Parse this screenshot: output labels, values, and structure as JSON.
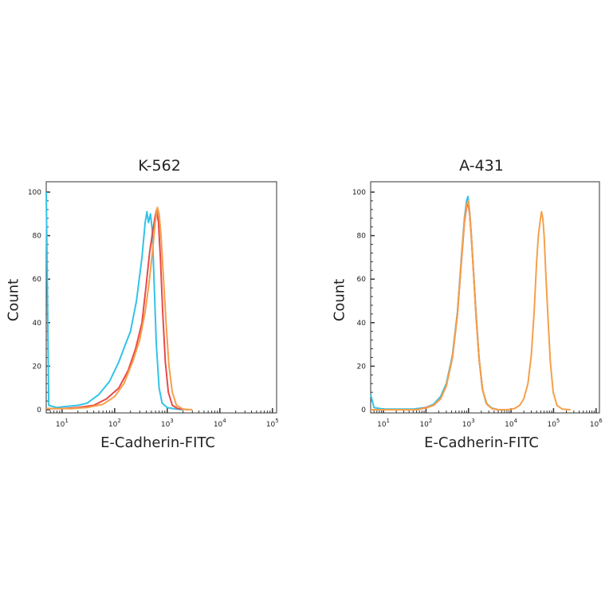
{
  "chart_data": [
    {
      "type": "line",
      "title": "K-562",
      "xlabel": "E-Cadherin-FITC",
      "ylabel": "Count",
      "x_scale": "log",
      "xlim": [
        5,
        120000
      ],
      "ylim": [
        0,
        100
      ],
      "y_ticks": [
        "0",
        "20",
        "40",
        "60",
        "80",
        "100"
      ],
      "x_tick_exponents": [
        1,
        2,
        3,
        4,
        5
      ],
      "series": [
        {
          "color": "#33c3e8",
          "points": [
            [
              5,
              100
            ],
            [
              5.6,
              2
            ],
            [
              8,
              1
            ],
            [
              12,
              1.5
            ],
            [
              20,
              2
            ],
            [
              30,
              3
            ],
            [
              50,
              7
            ],
            [
              80,
              13
            ],
            [
              120,
              22
            ],
            [
              160,
              30
            ],
            [
              200,
              36
            ],
            [
              260,
              50
            ],
            [
              330,
              70
            ],
            [
              380,
              86
            ],
            [
              410,
              91
            ],
            [
              440,
              86
            ],
            [
              480,
              90
            ],
            [
              520,
              82
            ],
            [
              560,
              60
            ],
            [
              620,
              30
            ],
            [
              700,
              10
            ],
            [
              800,
              3
            ],
            [
              1000,
              1
            ],
            [
              1300,
              0.5
            ],
            [
              2000,
              0
            ]
          ]
        },
        {
          "color": "#e84a4a",
          "points": [
            [
              5,
              0.5
            ],
            [
              10,
              0.5
            ],
            [
              20,
              1
            ],
            [
              40,
              2
            ],
            [
              70,
              5
            ],
            [
              120,
              10
            ],
            [
              180,
              18
            ],
            [
              250,
              28
            ],
            [
              330,
              40
            ],
            [
              400,
              58
            ],
            [
              460,
              72
            ],
            [
              530,
              82
            ],
            [
              580,
              88
            ],
            [
              630,
              92
            ],
            [
              680,
              86
            ],
            [
              740,
              70
            ],
            [
              820,
              45
            ],
            [
              920,
              22
            ],
            [
              1050,
              8
            ],
            [
              1250,
              2
            ],
            [
              1600,
              0.5
            ],
            [
              2500,
              0
            ]
          ]
        },
        {
          "color": "#f5a04a",
          "points": [
            [
              5,
              0.5
            ],
            [
              15,
              0.5
            ],
            [
              30,
              1
            ],
            [
              60,
              2.5
            ],
            [
              100,
              6
            ],
            [
              150,
              12
            ],
            [
              220,
              22
            ],
            [
              300,
              32
            ],
            [
              380,
              45
            ],
            [
              450,
              58
            ],
            [
              520,
              72
            ],
            [
              590,
              86
            ],
            [
              650,
              93
            ],
            [
              700,
              90
            ],
            [
              760,
              80
            ],
            [
              840,
              62
            ],
            [
              950,
              40
            ],
            [
              1080,
              20
            ],
            [
              1250,
              8
            ],
            [
              1500,
              2
            ],
            [
              2000,
              0.3
            ],
            [
              3000,
              0
            ]
          ]
        }
      ]
    },
    {
      "type": "line",
      "title": "A-431",
      "xlabel": "E-Cadherin-FITC",
      "ylabel": "Count",
      "x_scale": "log",
      "xlim": [
        5,
        1200000
      ],
      "ylim": [
        0,
        100
      ],
      "y_ticks": [
        "0",
        "20",
        "40",
        "60",
        "80",
        "100"
      ],
      "x_tick_exponents": [
        1,
        2,
        3,
        4,
        5,
        6
      ],
      "series": [
        {
          "color": "#33c3e8",
          "points": [
            [
              5,
              7
            ],
            [
              6,
              1
            ],
            [
              10,
              0.3
            ],
            [
              50,
              0.3
            ],
            [
              100,
              1
            ],
            [
              150,
              2.5
            ],
            [
              220,
              6
            ],
            [
              300,
              12
            ],
            [
              420,
              25
            ],
            [
              550,
              45
            ],
            [
              680,
              70
            ],
            [
              800,
              88
            ],
            [
              900,
              96
            ],
            [
              970,
              98
            ],
            [
              1050,
              92
            ],
            [
              1150,
              82
            ],
            [
              1300,
              65
            ],
            [
              1500,
              45
            ],
            [
              1750,
              25
            ],
            [
              2100,
              10
            ],
            [
              2600,
              3
            ],
            [
              3500,
              0.8
            ],
            [
              5000,
              0
            ]
          ]
        },
        {
          "color": "#e84a4a",
          "points": [
            [
              5,
              0
            ],
            [
              60,
              0
            ],
            [
              100,
              1
            ],
            [
              150,
              2
            ],
            [
              220,
              5
            ],
            [
              300,
              11
            ],
            [
              420,
              24
            ],
            [
              550,
              44
            ],
            [
              680,
              68
            ],
            [
              800,
              86
            ],
            [
              900,
              93
            ],
            [
              980,
              95
            ],
            [
              1060,
              90
            ],
            [
              1160,
              80
            ],
            [
              1320,
              62
            ],
            [
              1520,
              42
            ],
            [
              1780,
              23
            ],
            [
              2150,
              9
            ],
            [
              2700,
              2.5
            ],
            [
              3600,
              0.5
            ],
            [
              5000,
              0
            ]
          ]
        },
        {
          "color": "#f5a04a",
          "points": [
            [
              5,
              0
            ],
            [
              60,
              0
            ],
            [
              100,
              0.8
            ],
            [
              150,
              2
            ],
            [
              220,
              5
            ],
            [
              300,
              11
            ],
            [
              420,
              24
            ],
            [
              550,
              44
            ],
            [
              680,
              69
            ],
            [
              800,
              87
            ],
            [
              900,
              94
            ],
            [
              980,
              96
            ],
            [
              1060,
              91
            ],
            [
              1160,
              80
            ],
            [
              1320,
              62
            ],
            [
              1520,
              42
            ],
            [
              1780,
              23
            ],
            [
              2150,
              9
            ],
            [
              2700,
              2.5
            ],
            [
              3600,
              0.5
            ],
            [
              5000,
              0
            ],
            [
              8000,
              0
            ],
            [
              12000,
              0.5
            ],
            [
              16000,
              2
            ],
            [
              20000,
              5
            ],
            [
              25000,
              12
            ],
            [
              30000,
              25
            ],
            [
              35000,
              45
            ],
            [
              40000,
              68
            ],
            [
              44000,
              80
            ],
            [
              48000,
              86
            ],
            [
              52000,
              91
            ],
            [
              56000,
              88
            ],
            [
              60000,
              80
            ],
            [
              66000,
              62
            ],
            [
              74000,
              42
            ],
            [
              84000,
              22
            ],
            [
              98000,
              8
            ],
            [
              120000,
              2
            ],
            [
              160000,
              0.3
            ],
            [
              250000,
              0
            ]
          ]
        }
      ]
    }
  ]
}
